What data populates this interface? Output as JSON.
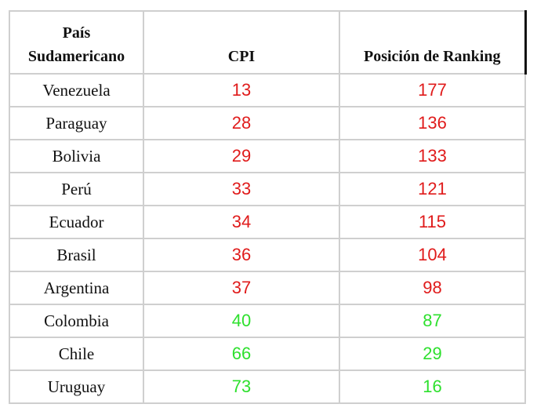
{
  "table": {
    "headers": [
      "País\nSudamericano",
      "CPI",
      "Posición de Ranking"
    ],
    "header_country_line1": "País",
    "header_country_line2": "Sudamericano",
    "header_cpi": "CPI",
    "header_rank": "Posición de Ranking",
    "rows": [
      {
        "country": "Venezuela",
        "cpi": "13",
        "rank": "177",
        "color": "#e01b1b"
      },
      {
        "country": "Paraguay",
        "cpi": "28",
        "rank": "136",
        "color": "#e01b1b"
      },
      {
        "country": "Bolivia",
        "cpi": "29",
        "rank": "133",
        "color": "#e01b1b"
      },
      {
        "country": "Perú",
        "cpi": "33",
        "rank": "121",
        "color": "#e01b1b"
      },
      {
        "country": "Ecuador",
        "cpi": "34",
        "rank": "115",
        "color": "#e01b1b"
      },
      {
        "country": "Brasil",
        "cpi": "36",
        "rank": "104",
        "color": "#e01b1b"
      },
      {
        "country": "Argentina",
        "cpi": "37",
        "rank": "98",
        "color": "#e01b1b"
      },
      {
        "country": "Colombia",
        "cpi": "40",
        "rank": "87",
        "color": "#2ee02e"
      },
      {
        "country": "Chile",
        "cpi": "66",
        "rank": "29",
        "color": "#2ee02e"
      },
      {
        "country": "Uruguay",
        "cpi": "73",
        "rank": "16",
        "color": "#2ee02e"
      }
    ]
  },
  "colors": {
    "red": "#e01b1b",
    "green": "#2ee02e",
    "border": "#cfcfcf"
  }
}
